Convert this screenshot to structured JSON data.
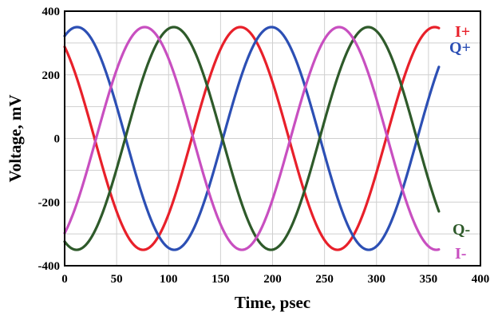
{
  "chart_data": {
    "type": "line",
    "xlabel": "Time, psec",
    "ylabel": "Voltage, mV",
    "xlim": [
      0,
      400
    ],
    "ylim": [
      -400,
      400
    ],
    "xticks": [
      0,
      50,
      100,
      150,
      200,
      250,
      300,
      350,
      400
    ],
    "yticks": [
      -400,
      -200,
      0,
      200,
      400
    ],
    "xtick_labels": [
      "0",
      "50",
      "100",
      "150",
      "200",
      "250",
      "300",
      "350",
      "400"
    ],
    "ytick_labels": [
      "-400",
      "-200",
      "0",
      "200",
      "400"
    ],
    "grid": true,
    "legend": "inline labels at right end of each series",
    "series": [
      {
        "name": "I+",
        "color": "#e8202a",
        "amplitude": 350,
        "period_ps": 187,
        "peak_times_ps": [
          -18,
          170,
          357
        ],
        "x_end": 360
      },
      {
        "name": "Q+",
        "color": "#2c4fb4",
        "amplitude": 350,
        "period_ps": 187,
        "peak_times_ps": [
          12,
          197,
          383
        ],
        "x_end": 360
      },
      {
        "name": "Q-",
        "color": "#2e5a2a",
        "amplitude": 350,
        "period_ps": 187,
        "peak_times_ps": [
          105,
          290
        ],
        "x_end": 360
      },
      {
        "name": "I-",
        "color": "#c84fc0",
        "amplitude": 350,
        "period_ps": 187,
        "peak_times_ps": [
          77,
          262
        ],
        "x_end": 360
      }
    ]
  }
}
